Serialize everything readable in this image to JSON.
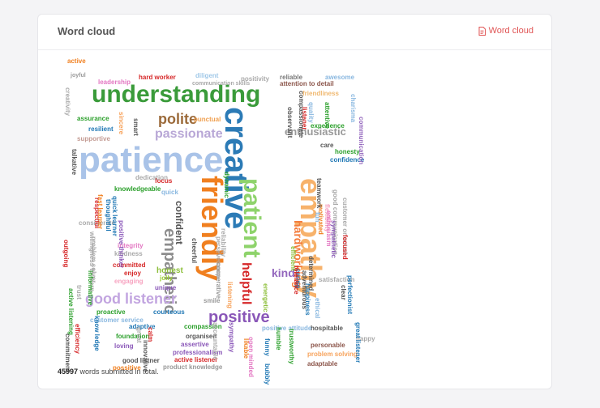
{
  "card": {
    "title": "Word cloud",
    "link_label": "Word cloud"
  },
  "footer": {
    "count": "45997",
    "text": "words submitted in total."
  },
  "words": [
    {
      "text": "understanding",
      "color": "#3a9b3a"
    },
    {
      "text": "patience",
      "color": "#a9c3e8"
    },
    {
      "text": "creative",
      "color": "#2c7bb6"
    },
    {
      "text": "empathy",
      "color": "#f7b26b"
    },
    {
      "text": "friendly",
      "color": "#f07f1f"
    },
    {
      "text": "patient",
      "color": "#8ed36b"
    },
    {
      "text": "empathetic",
      "color": "#8d8d8d"
    },
    {
      "text": "good listener",
      "color": "#c2a5e0"
    },
    {
      "text": "positive",
      "color": "#8a57b8"
    },
    {
      "text": "helpful",
      "color": "#d62728"
    },
    {
      "text": "polite",
      "color": "#9b6a3a"
    },
    {
      "text": "passionate",
      "color": "#b8a7d6"
    },
    {
      "text": "enthusiastic",
      "color": "#999999"
    },
    {
      "text": "kind",
      "color": "#9467bd"
    },
    {
      "text": "hardworking",
      "color": "#f47c3c"
    },
    {
      "text": "confident",
      "color": "#555555"
    },
    {
      "text": "leadership",
      "color": "#e377c2"
    },
    {
      "text": "hard worker",
      "color": "#d62728"
    },
    {
      "text": "diligent",
      "color": "#a0c8e8"
    },
    {
      "text": "positivity",
      "color": "#aaaaaa"
    },
    {
      "text": "reliable",
      "color": "#777777"
    },
    {
      "text": "awesome",
      "color": "#8ab8e0"
    },
    {
      "text": "joyful",
      "color": "#9a9a9a"
    },
    {
      "text": "communication skills",
      "color": "#aaaaaa"
    },
    {
      "text": "attention to detail",
      "color": "#8c564b"
    },
    {
      "text": "friendliness",
      "color": "#f0b870"
    },
    {
      "text": "assurance",
      "color": "#2ca02c"
    },
    {
      "text": "resilient",
      "color": "#1f77b4"
    },
    {
      "text": "supportive",
      "color": "#c49c94"
    },
    {
      "text": "punctual",
      "color": "#f0a050"
    },
    {
      "text": "smart",
      "color": "#555555"
    },
    {
      "text": "sincere",
      "color": "#f7a35c"
    },
    {
      "text": "experience",
      "color": "#2ca02c"
    },
    {
      "text": "care",
      "color": "#555555"
    },
    {
      "text": "honesty",
      "color": "#2ca02c"
    },
    {
      "text": "confidence",
      "color": "#1f77b4"
    },
    {
      "text": "focus",
      "color": "#d62728"
    },
    {
      "text": "dedication",
      "color": "#aaaaaa"
    },
    {
      "text": "knowledgeable",
      "color": "#2ca02c"
    },
    {
      "text": "quick",
      "color": "#8ab8e0"
    },
    {
      "text": "considerate",
      "color": "#aaaaaa"
    },
    {
      "text": "integrity",
      "color": "#e377c2"
    },
    {
      "text": "kindness",
      "color": "#aaaaaa"
    },
    {
      "text": "committed",
      "color": "#d62728"
    },
    {
      "text": "enjoy",
      "color": "#d62728"
    },
    {
      "text": "engaging",
      "color": "#f7a3c0"
    },
    {
      "text": "honest",
      "color": "#8dbf3a"
    },
    {
      "text": "jolly",
      "color": "#9acd32"
    },
    {
      "text": "unique",
      "color": "#8a57b8"
    },
    {
      "text": "smile",
      "color": "#999999"
    },
    {
      "text": "proactive",
      "color": "#2ca02c"
    },
    {
      "text": "customer service",
      "color": "#8ab8e0"
    },
    {
      "text": "courteous",
      "color": "#1f77b4"
    },
    {
      "text": "adaptive",
      "color": "#1f77b4"
    },
    {
      "text": "compassion",
      "color": "#2ca02c"
    },
    {
      "text": "organised",
      "color": "#555555"
    },
    {
      "text": "assertive",
      "color": "#8a57b8"
    },
    {
      "text": "professionalism",
      "color": "#8a57b8"
    },
    {
      "text": "active listener",
      "color": "#d62728"
    },
    {
      "text": "product knowledge",
      "color": "#999999"
    },
    {
      "text": "foundation",
      "color": "#2ca02c"
    },
    {
      "text": "loving",
      "color": "#8a57b8"
    },
    {
      "text": "good listner",
      "color": "#555555"
    },
    {
      "text": "possitive",
      "color": "#f07f1f"
    },
    {
      "text": "satisfaction",
      "color": "#aaaaaa"
    },
    {
      "text": "hospitable",
      "color": "#555555"
    },
    {
      "text": "happy",
      "color": "#aaaaaa"
    },
    {
      "text": "personable",
      "color": "#8c564b"
    },
    {
      "text": "problem solving",
      "color": "#f7a35c"
    },
    {
      "text": "adaptable",
      "color": "#8c564b"
    },
    {
      "text": "bubbly",
      "color": "#1f77b4"
    },
    {
      "text": "funny",
      "color": "#1f77b4"
    },
    {
      "text": "positive attitude",
      "color": "#8ab8e0"
    },
    {
      "text": "open minded",
      "color": "#e377c2"
    },
    {
      "text": "trustworthy",
      "color": "#2ca02c"
    },
    {
      "text": "caring",
      "color": "#1f77b4"
    },
    {
      "text": "energetic",
      "color": "#8dbf3a"
    },
    {
      "text": "listening",
      "color": "#f7a35c"
    },
    {
      "text": "cooperative",
      "color": "#999999"
    },
    {
      "text": "perseverance",
      "color": "#aaaaaa"
    },
    {
      "text": "charisma",
      "color": "#8ab8e0"
    },
    {
      "text": "communication",
      "color": "#9467bd"
    },
    {
      "text": "flexibility",
      "color": "#f7a3c0"
    },
    {
      "text": "good communication",
      "color": "#aaaaaa"
    },
    {
      "text": "customer oriented",
      "color": "#aaaaaa"
    },
    {
      "text": "focused",
      "color": "#d62728"
    },
    {
      "text": "motivated",
      "color": "#f07f1f"
    },
    {
      "text": "attentive",
      "color": "#2ca02c"
    },
    {
      "text": "quality",
      "color": "#8ab8e0"
    },
    {
      "text": "listener",
      "color": "#d62728"
    },
    {
      "text": "observant",
      "color": "#555555"
    },
    {
      "text": "fun",
      "color": "#8ab8e0"
    },
    {
      "text": "dynamic",
      "color": "#2ca02c"
    },
    {
      "text": "talkative",
      "color": "#555555"
    },
    {
      "text": "creativity",
      "color": "#aaaaaa"
    },
    {
      "text": "problem solver",
      "color": "#aaaaaa"
    },
    {
      "text": "willingness to learn",
      "color": "#aaaaaa"
    },
    {
      "text": "informative",
      "color": "#2ca02c"
    },
    {
      "text": "trust",
      "color": "#aaaaaa"
    },
    {
      "text": "outgoing",
      "color": "#d62728"
    },
    {
      "text": "active listening",
      "color": "#2ca02c"
    },
    {
      "text": "commitment",
      "color": "#555555"
    },
    {
      "text": "efficiency",
      "color": "#d62728"
    },
    {
      "text": "know ledge",
      "color": "#1f77b4"
    },
    {
      "text": "great",
      "color": "#aaaaaa"
    },
    {
      "text": "innovative",
      "color": "#555555"
    },
    {
      "text": "calm",
      "color": "#d62728"
    },
    {
      "text": "accountable",
      "color": "#aaaaaa"
    },
    {
      "text": "sympathy",
      "color": "#8a57b8"
    },
    {
      "text": "likable",
      "color": "#f07f1f"
    },
    {
      "text": "humble",
      "color": "#2ca02c"
    },
    {
      "text": "tolerance",
      "color": "#d62728"
    },
    {
      "text": "efficient",
      "color": "#8dbf3a"
    },
    {
      "text": "cheerful",
      "color": "#555555"
    },
    {
      "text": "respectful",
      "color": "#d62728"
    },
    {
      "text": "fast learner",
      "color": "#f07f1f"
    },
    {
      "text": "thoughtful",
      "color": "#1f77b4"
    },
    {
      "text": "quick learner",
      "color": "#1f77b4"
    },
    {
      "text": "positive thinker",
      "color": "#8a57b8"
    },
    {
      "text": "reliability",
      "color": "#aaaaaa"
    },
    {
      "text": "teamwork",
      "color": "#555555"
    },
    {
      "text": "enthusiasm",
      "color": "#e377c2"
    },
    {
      "text": "determined",
      "color": "#555555"
    },
    {
      "text": "adventurous",
      "color": "#555555"
    },
    {
      "text": "happiness",
      "color": "#1f77b4"
    },
    {
      "text": "ethical",
      "color": "#8ab8e0"
    },
    {
      "text": "perfectionist",
      "color": "#1f77b4"
    },
    {
      "text": "great listener",
      "color": "#1f77b4"
    },
    {
      "text": "clear",
      "color": "#555555"
    },
    {
      "text": "sympathetic",
      "color": "#8a57b8"
    },
    {
      "text": "compassionate",
      "color": "#555555"
    },
    {
      "text": "active",
      "color": "#f07f1f"
    }
  ]
}
